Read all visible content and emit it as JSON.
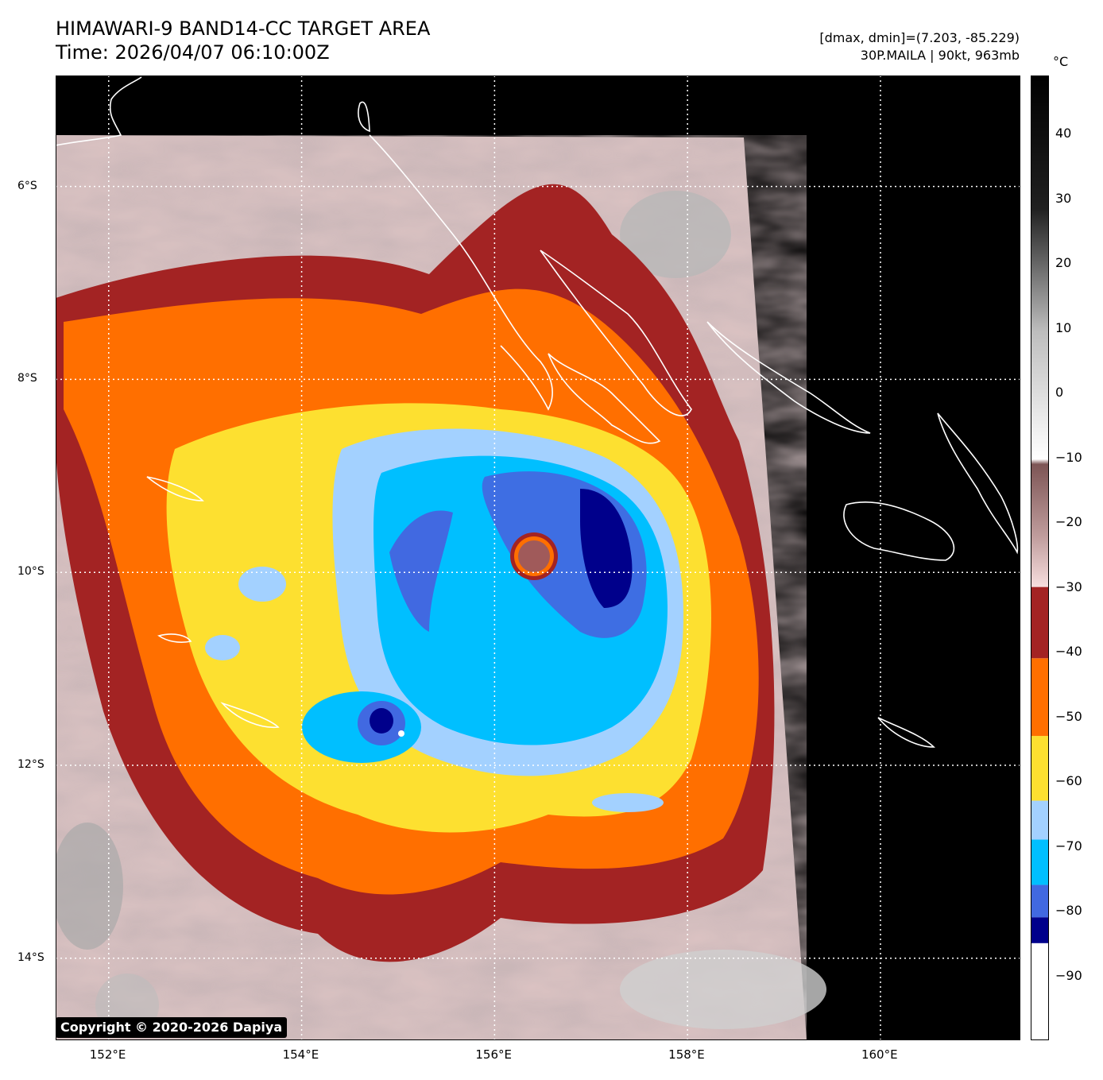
{
  "header": {
    "title_line1": "HIMAWARI-9 BAND14-CC TARGET AREA",
    "title_line2": "Time: 2026/04/07 06:10:00Z",
    "dminmax": "[dmax, dmin]=(7.203, -85.229)",
    "storm": "30P.MAILA | 90kt, 963mb"
  },
  "colorbar": {
    "unit": "°C",
    "ticks": [
      "40",
      "30",
      "20",
      "10",
      "0",
      "−10",
      "−20",
      "−30",
      "−40",
      "−50",
      "−60",
      "−70",
      "−80",
      "−90"
    ],
    "tick_values": [
      40,
      30,
      20,
      10,
      0,
      -10,
      -20,
      -30,
      -40,
      -50,
      -60,
      -70,
      -80,
      -90
    ],
    "range": [
      -100,
      49
    ],
    "segments": [
      {
        "from": -100,
        "to": -85,
        "color": "#ffffff"
      },
      {
        "from": -85,
        "to": -81,
        "color": "#00008b"
      },
      {
        "from": -81,
        "to": -76,
        "color": "#4169e1"
      },
      {
        "from": -76,
        "to": -69,
        "color": "#00bfff"
      },
      {
        "from": -69,
        "to": -63,
        "color": "#a3d1ff"
      },
      {
        "from": -63,
        "to": -53,
        "color": "#fde030"
      },
      {
        "from": -53,
        "to": -41,
        "color": "#ff6f00"
      },
      {
        "from": -41,
        "to": -30,
        "color": "#a32323"
      }
    ]
  },
  "axes": {
    "lat_labels": [
      "6°S",
      "8°S",
      "10°S",
      "12°S",
      "14°S"
    ],
    "lat_values": [
      -6,
      -8,
      -10,
      -12,
      -14
    ],
    "lon_labels": [
      "152°E",
      "154°E",
      "156°E",
      "158°E",
      "160°E"
    ],
    "lon_values": [
      152,
      154,
      156,
      158,
      160
    ],
    "lat_range": [
      -4.85,
      -14.85
    ],
    "lon_range": [
      151.45,
      161.45
    ],
    "gridlines": true
  },
  "map": {
    "storm_center": {
      "lat": -9.85,
      "lon": 156.45
    },
    "background_color": "#000000",
    "coastline_color": "#ffffff"
  },
  "copyright": "Copyright © 2020-2026 Dapiya"
}
